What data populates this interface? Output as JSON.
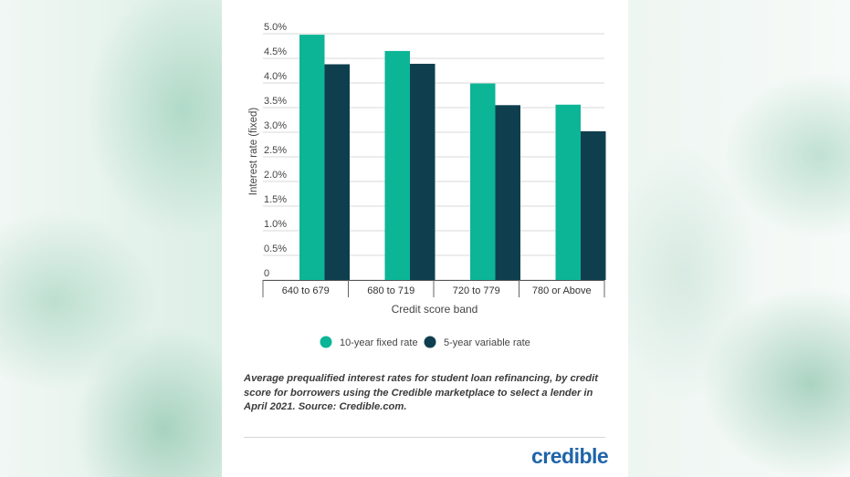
{
  "chart_data": {
    "type": "bar",
    "categories": [
      "640 to 679",
      "680 to 719",
      "720 to 779",
      "780 or Above"
    ],
    "series": [
      {
        "name": "10-year fixed rate",
        "values": [
          4.98,
          4.65,
          3.99,
          3.56
        ],
        "color": "#0cb596"
      },
      {
        "name": "5-year variable rate",
        "values": [
          4.38,
          4.39,
          3.55,
          3.02
        ],
        "color": "#0f3f4e"
      }
    ],
    "ylim": [
      0,
      5
    ],
    "yticks": [
      "5.0%",
      "4.5%",
      "4.0%",
      "3.5%",
      "3.0%",
      "2.5%",
      "2.0%",
      "1.5%",
      "1.0%",
      "0.5%",
      "0"
    ],
    "ylabel": "Interest rate (fixed)",
    "xlabel": "Credit score band",
    "grid": true,
    "legend_position": "bottom"
  },
  "caption": "Average prequalified interest rates for student loan refinancing, by credit score for borrowers using the Credible marketplace to select a lender in April 2021. Source: Credible.com.",
  "logo_text": "credible"
}
